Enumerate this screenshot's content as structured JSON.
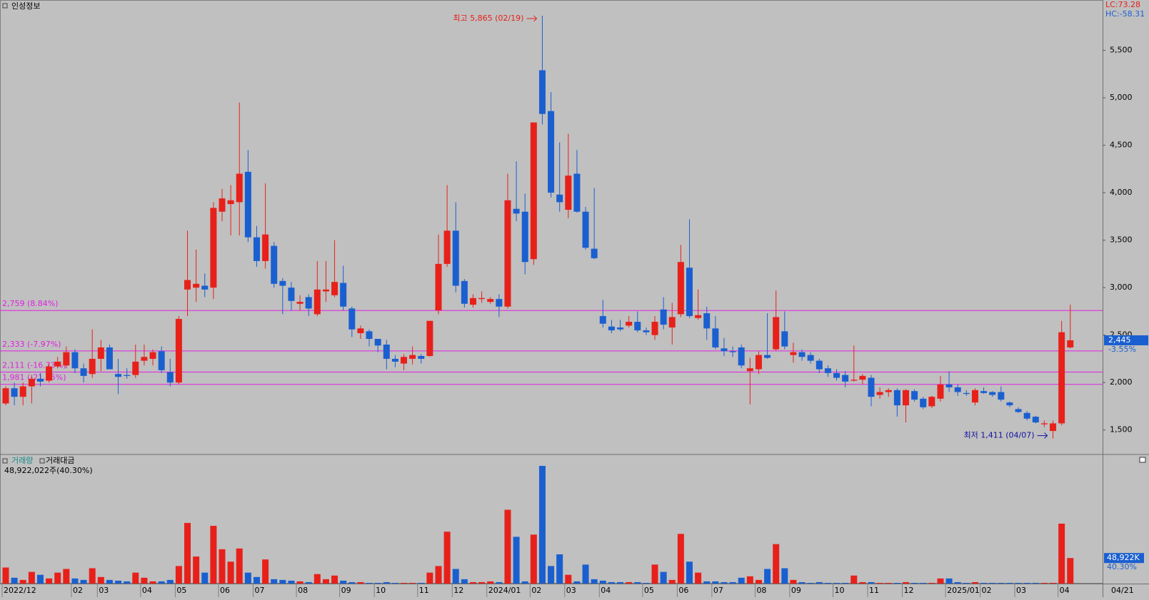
{
  "chart_data": {
    "type": "candlestick",
    "title": "인성정보",
    "corner_labels": [
      "LC:73.28",
      "HC:-58.31"
    ],
    "up_color": "#e8201a",
    "down_color": "#1a5fd0",
    "level_color": "#e020e0",
    "ylim": [
      1250,
      6030
    ],
    "yticks": [
      {
        "value": 1500,
        "label": "1,500"
      },
      {
        "value": 2000,
        "label": "2,000"
      },
      {
        "value": 2500,
        "label": "2,500"
      },
      {
        "value": 3000,
        "label": "3,000"
      },
      {
        "value": 3500,
        "label": "3,500"
      },
      {
        "value": 4000,
        "label": "4,000"
      },
      {
        "value": 4500,
        "label": "4,500"
      },
      {
        "value": 5000,
        "label": "5,000"
      },
      {
        "value": 5500,
        "label": "5,500"
      }
    ],
    "categories": [
      "2022/12",
      null,
      null,
      null,
      null,
      null,
      null,
      null,
      "02",
      null,
      null,
      "03",
      null,
      null,
      null,
      null,
      "04",
      null,
      null,
      null,
      "05",
      null,
      null,
      null,
      null,
      "06",
      null,
      null,
      null,
      "07",
      null,
      null,
      null,
      null,
      "08",
      null,
      null,
      null,
      null,
      "09",
      null,
      null,
      null,
      "10",
      null,
      null,
      null,
      null,
      "11",
      null,
      null,
      null,
      "12",
      null,
      null,
      null,
      "2024/01",
      null,
      null,
      null,
      null,
      "02",
      null,
      null,
      null,
      "03",
      null,
      null,
      null,
      "04",
      null,
      null,
      null,
      null,
      "05",
      null,
      null,
      null,
      "06",
      null,
      null,
      null,
      "07",
      null,
      null,
      null,
      null,
      "08",
      null,
      null,
      null,
      "09",
      null,
      null,
      null,
      null,
      "10",
      null,
      null,
      null,
      "11",
      null,
      null,
      null,
      "12",
      null,
      null,
      null,
      null,
      "2025/01",
      null,
      null,
      null,
      "02",
      null,
      null,
      null,
      "03",
      null,
      null,
      null,
      null,
      "04",
      null
    ],
    "last_date": "04/21",
    "open": [
      1780,
      1940,
      1850,
      1960,
      2040,
      2020,
      2170,
      2180,
      2320,
      2150,
      2090,
      2250,
      2370,
      2090,
      2080,
      2080,
      2230,
      2250,
      2330,
      2110,
      2000,
      2980,
      3000,
      3020,
      3000,
      3800,
      3880,
      3900,
      4220,
      3530,
      3280,
      3440,
      3070,
      3000,
      2830,
      2900,
      2720,
      2960,
      2920,
      3050,
      2780,
      2520,
      2540,
      2460,
      2400,
      2250,
      2200,
      2250,
      2280,
      2280,
      2760,
      3250,
      3600,
      3070,
      2820,
      2880,
      2850,
      2880,
      2800,
      3830,
      3800,
      3300,
      5290,
      4860,
      3980,
      3820,
      4200,
      3800,
      3410,
      2700,
      2590,
      2580,
      2600,
      2640,
      2550,
      2500,
      2770,
      2580,
      2720,
      3210,
      2680,
      2730,
      2570,
      2360,
      2330,
      2370,
      2120,
      2140,
      2290,
      2350,
      2540,
      2290,
      2320,
      2290,
      2230,
      2150,
      2100,
      2080,
      2020,
      2030,
      2050,
      1870,
      1900,
      1920,
      1760,
      1910,
      1830,
      1750,
      1830,
      1980,
      1950,
      1890,
      1790,
      1910,
      1900,
      1900,
      1790,
      1720,
      1680,
      1640,
      1560,
      1490,
      1570,
      2370
    ],
    "high": [
      1960,
      2000,
      2000,
      2080,
      2100,
      2200,
      2270,
      2380,
      2350,
      2200,
      2560,
      2450,
      2400,
      2250,
      2150,
      2400,
      2400,
      2350,
      2380,
      2250,
      2700,
      3600,
      3400,
      3150,
      3900,
      4040,
      4080,
      4950,
      4450,
      3650,
      4100,
      3480,
      3100,
      3060,
      2920,
      2930,
      3280,
      3280,
      3500,
      3230,
      2800,
      2600,
      2560,
      2450,
      2450,
      2290,
      2300,
      2380,
      2300,
      2650,
      3560,
      4080,
      3900,
      3090,
      2930,
      2960,
      2900,
      2930,
      4200,
      4330,
      3990,
      4740,
      5865,
      5060,
      4530,
      4620,
      4450,
      3850,
      4050,
      2870,
      2660,
      2660,
      2700,
      2750,
      2580,
      2700,
      2900,
      2840,
      3450,
      3720,
      2980,
      2800,
      2700,
      2470,
      2380,
      2400,
      2260,
      2330,
      2730,
      2970,
      2750,
      2420,
      2350,
      2320,
      2250,
      2180,
      2140,
      2120,
      2390,
      2090,
      2080,
      1950,
      1940,
      1940,
      1930,
      1930,
      1850,
      1860,
      2070,
      2120,
      1980,
      1920,
      1940,
      1950,
      1910,
      1960,
      1800,
      1740,
      1700,
      1650,
      1600,
      1600,
      2650,
      2820
    ],
    "low": [
      1760,
      1760,
      1760,
      1780,
      1960,
      2000,
      2150,
      2150,
      2100,
      2000,
      2050,
      2120,
      2150,
      1880,
      2040,
      2050,
      2180,
      2180,
      2100,
      1960,
      1980,
      2700,
      2850,
      2900,
      2880,
      3700,
      3550,
      3550,
      3480,
      3220,
      3200,
      3000,
      2720,
      2760,
      2760,
      2700,
      2700,
      2850,
      2900,
      2760,
      2480,
      2460,
      2380,
      2320,
      2140,
      2160,
      2130,
      2190,
      2200,
      2270,
      2720,
      3220,
      2950,
      2790,
      2790,
      2840,
      2830,
      2690,
      2780,
      3700,
      3140,
      3240,
      4720,
      3950,
      3800,
      3730,
      3790,
      3400,
      3300,
      2580,
      2520,
      2540,
      2580,
      2530,
      2500,
      2450,
      2560,
      2400,
      2690,
      2680,
      2660,
      2450,
      2350,
      2280,
      2270,
      2150,
      1770,
      2090,
      2250,
      2330,
      2350,
      2210,
      2230,
      2200,
      2100,
      2060,
      2020,
      1950,
      2010,
      1980,
      1750,
      1830,
      1850,
      1640,
      1580,
      1800,
      1720,
      1730,
      1800,
      1900,
      1860,
      1860,
      1760,
      1880,
      1850,
      1800,
      1740,
      1680,
      1600,
      1570,
      1530,
      1411,
      1550,
      2360
    ],
    "close": [
      1940,
      1850,
      1960,
      2040,
      2010,
      2170,
      2220,
      2320,
      2150,
      2070,
      2250,
      2370,
      2140,
      2060,
      2070,
      2220,
      2270,
      2320,
      2130,
      2000,
      2670,
      3080,
      3040,
      2980,
      3840,
      3940,
      3920,
      4200,
      3530,
      3280,
      3560,
      3040,
      3020,
      2860,
      2850,
      2780,
      2980,
      2980,
      3060,
      2800,
      2560,
      2570,
      2460,
      2390,
      2250,
      2220,
      2270,
      2290,
      2250,
      2650,
      3250,
      3600,
      3020,
      2830,
      2890,
      2890,
      2880,
      2800,
      3920,
      3780,
      3270,
      4740,
      4830,
      4000,
      3900,
      4180,
      3800,
      3420,
      3310,
      2620,
      2550,
      2560,
      2640,
      2550,
      2530,
      2640,
      2610,
      2690,
      3270,
      2700,
      2710,
      2570,
      2370,
      2330,
      2320,
      2180,
      2150,
      2290,
      2260,
      2690,
      2380,
      2320,
      2270,
      2230,
      2140,
      2100,
      2050,
      2010,
      2030,
      2070,
      1850,
      1900,
      1920,
      1760,
      1920,
      1820,
      1740,
      1850,
      1980,
      1950,
      1900,
      1880,
      1920,
      1890,
      1870,
      1820,
      1760,
      1690,
      1620,
      1580,
      1570,
      1570,
      2530,
      2445
    ],
    "levels": [
      {
        "value": 2759,
        "label": "2,759 (8.84%)"
      },
      {
        "value": 2333,
        "label": "2,333 (-7.97%)"
      },
      {
        "value": 2111,
        "label": "2,111 (-16.73%)"
      },
      {
        "value": 1981,
        "label": "1,981 (-21.85%)"
      }
    ],
    "annotations": {
      "high": "최고 5,865 (02/19)",
      "low": "최저 1,411 (04/07)"
    },
    "current_price": {
      "value": 2445,
      "label": "2,445"
    },
    "current_change": "-3.55%",
    "volume": {
      "title": "거래량",
      "title2": "거래대금",
      "summary": "48,922,022주(40.30%)",
      "ylim": [
        0,
        235000
      ],
      "values": [
        30800,
        11200,
        7000,
        22400,
        16800,
        9800,
        21000,
        28000,
        9800,
        7000,
        29400,
        12600,
        7000,
        5600,
        4200,
        21000,
        11200,
        4200,
        4200,
        7000,
        33600,
        116200,
        51800,
        21000,
        110600,
        65800,
        42000,
        67200,
        21000,
        12600,
        46200,
        8400,
        7000,
        5600,
        4200,
        2800,
        18200,
        8400,
        15400,
        5600,
        2800,
        2800,
        1400,
        1400,
        2800,
        1400,
        1400,
        1400,
        1400,
        21000,
        33600,
        99400,
        28000,
        8400,
        2800,
        2800,
        4200,
        2800,
        141400,
        89600,
        4200,
        93800,
        225400,
        33600,
        56000,
        16800,
        4200,
        36400,
        8400,
        5600,
        2800,
        2800,
        2800,
        2800,
        1400,
        36400,
        22400,
        7000,
        95200,
        42000,
        21000,
        4200,
        4200,
        2800,
        2800,
        11200,
        14000,
        7000,
        28000,
        75600,
        29400,
        7000,
        2800,
        1400,
        2800,
        1400,
        1400,
        1400,
        15400,
        2800,
        2800,
        1400,
        1400,
        1400,
        2800,
        1400,
        1400,
        1400,
        9800,
        9800,
        2800,
        1400,
        2800,
        1400,
        1400,
        1400,
        1400,
        1400,
        1400,
        1400,
        1400,
        1400,
        114800,
        48922
      ],
      "last": {
        "value": 48922,
        "label": "48,922K"
      },
      "last_ratio": "40.30%"
    }
  }
}
